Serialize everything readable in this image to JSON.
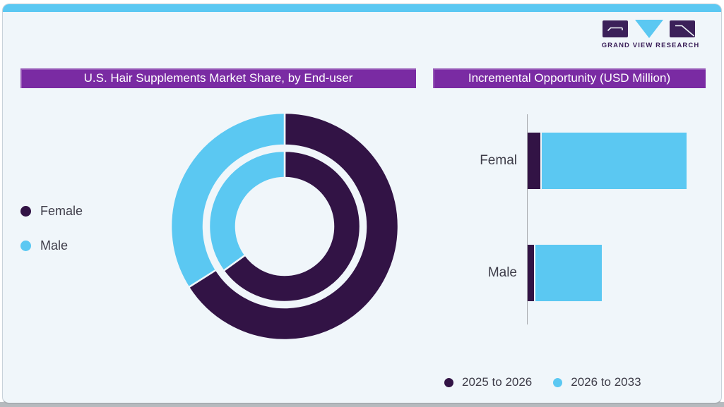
{
  "page": {
    "card_background": "#F0F6FA",
    "page_background": "#FFFFFF",
    "accent_bar_color": "#5BC8F2",
    "bottom_strip_color": "#B6BABE",
    "card_border_color": "#C8D2DA"
  },
  "logo": {
    "text": "GRAND VIEW RESEARCH",
    "dark_color": "#3B2059",
    "blue_color": "#5BC8F2"
  },
  "colors": {
    "series_dark_purple": "#321345",
    "series_light_blue": "#5BC8F2",
    "title_bar_background": "#7A2BA3",
    "title_text": "#FFFFFF",
    "label_text": "#3E3D49",
    "axis_line": "#A7A9AD"
  },
  "left_panel": {
    "title": "U.S. Hair Supplements Market Share, by End-user",
    "legend": [
      {
        "label": "Female",
        "color": "#321345"
      },
      {
        "label": "Male",
        "color": "#5BC8F2"
      }
    ]
  },
  "right_panel": {
    "title": "Incremental Opportunity (USD Million)",
    "legend": [
      {
        "label": "2025 to 2026",
        "color": "#321345"
      },
      {
        "label": "2026 to 2033",
        "color": "#5BC8F2"
      }
    ]
  },
  "chart_data": [
    {
      "type": "pie",
      "variant": "double_ring_donut",
      "title": "U.S. Hair Supplements Market Share, by End-user",
      "labels": [
        "Female",
        "Male"
      ],
      "colors": [
        "#321345",
        "#5BC8F2"
      ],
      "start_angle_deg": 0,
      "direction": "clockwise",
      "rings": [
        {
          "name": "outer",
          "values_pct": [
            66,
            34
          ]
        },
        {
          "name": "inner",
          "values_pct": [
            65,
            35
          ]
        }
      ],
      "value_labels_shown": false,
      "legend_position": "left"
    },
    {
      "type": "bar",
      "orientation": "horizontal",
      "stacked": true,
      "title": "Incremental Opportunity (USD Million)",
      "categories": [
        "Femal",
        "Male"
      ],
      "series": [
        {
          "name": "2025 to 2026",
          "color": "#321345",
          "values": [
            18,
            9
          ]
        },
        {
          "name": "2026 to 2033",
          "color": "#5BC8F2",
          "values": [
            205,
            94
          ]
        }
      ],
      "units": "relative (no numeric axis labels shown)",
      "axis": {
        "numeric_labels_shown": false,
        "baseline": "left"
      },
      "legend_position": "bottom"
    }
  ]
}
